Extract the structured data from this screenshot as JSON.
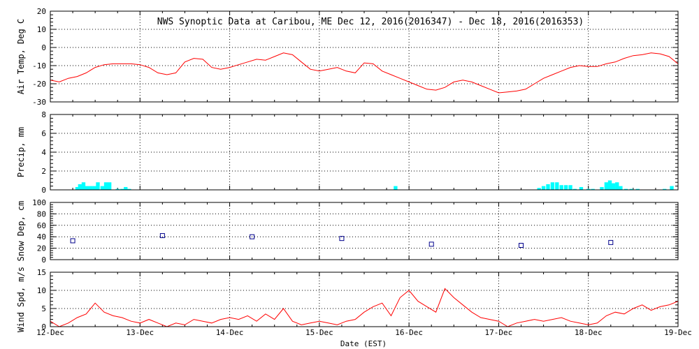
{
  "chart_data": {
    "type": "multi-panel time series",
    "title": "NWS Synoptic Data at Caribou, ME   Dec 12, 2016(2016347) - Dec 18, 2016(2016353)",
    "xlabel": "Date (EST)",
    "x_range_days": [
      0,
      7
    ],
    "x_ticks": [
      "12-Dec",
      "13-Dec",
      "14-Dec",
      "15-Dec",
      "16-Dec",
      "17-Dec",
      "18-Dec",
      "19-Dec"
    ],
    "colors": {
      "temp": "#ff0000",
      "precip": "#00ffff",
      "snow": "#00008b",
      "wind": "#ff0000"
    },
    "panels": [
      {
        "id": "airtemp",
        "type": "line",
        "ylabel": "Air Temp, Deg C",
        "ylim": [
          -30,
          20
        ],
        "yticks": [
          20,
          10,
          0,
          -10,
          -20,
          -30
        ],
        "x": [
          0,
          0.1,
          0.2,
          0.3,
          0.4,
          0.5,
          0.6,
          0.7,
          0.8,
          0.9,
          1.0,
          1.1,
          1.2,
          1.3,
          1.4,
          1.5,
          1.6,
          1.7,
          1.8,
          1.9,
          2.0,
          2.1,
          2.2,
          2.3,
          2.4,
          2.5,
          2.6,
          2.7,
          2.8,
          2.9,
          3.0,
          3.1,
          3.2,
          3.3,
          3.4,
          3.5,
          3.6,
          3.7,
          3.8,
          3.9,
          4.0,
          4.1,
          4.2,
          4.3,
          4.4,
          4.5,
          4.6,
          4.7,
          4.8,
          4.9,
          5.0,
          5.1,
          5.2,
          5.3,
          5.4,
          5.5,
          5.6,
          5.7,
          5.8,
          5.9,
          6.0,
          6.1,
          6.2,
          6.3,
          6.4,
          6.5,
          6.6,
          6.7,
          6.8,
          6.9,
          7.0
        ],
        "y": [
          -18,
          -19,
          -17,
          -16,
          -14,
          -11,
          -9.5,
          -9,
          -9,
          -9,
          -9.5,
          -11,
          -14,
          -15,
          -14,
          -8,
          -6,
          -6.5,
          -11,
          -12,
          -11,
          -9.5,
          -8,
          -6.5,
          -7,
          -5,
          -3,
          -4,
          -8,
          -12,
          -13,
          -12,
          -11,
          -13,
          -14,
          -8.5,
          -9,
          -13,
          -15,
          -17,
          -19,
          -21,
          -23,
          -23.5,
          -22,
          -19,
          -18,
          -19,
          -21,
          -23,
          -25,
          -24.5,
          -24,
          -23,
          -20,
          -17,
          -15,
          -13,
          -11,
          -10,
          -10.5,
          -10.5,
          -9,
          -8,
          -6,
          -4.5,
          -4,
          -3,
          -3.5,
          -5,
          -9
        ]
      },
      {
        "id": "precip",
        "type": "bar",
        "ylabel": "Precip, mm",
        "ylim": [
          0,
          8
        ],
        "yticks": [
          8,
          6,
          4,
          2,
          0
        ],
        "x": [
          0.3,
          0.33,
          0.37,
          0.41,
          0.45,
          0.49,
          0.53,
          0.58,
          0.62,
          0.66,
          0.75,
          0.8,
          0.84,
          0.88,
          3.85,
          5.45,
          5.5,
          5.55,
          5.6,
          5.65,
          5.7,
          5.75,
          5.8,
          5.85,
          5.92,
          6.0,
          6.05,
          6.15,
          6.2,
          6.24,
          6.28,
          6.32,
          6.36,
          6.42,
          6.48,
          6.55,
          6.85,
          6.93
        ],
        "values": [
          0.3,
          0.6,
          0.8,
          0.4,
          0.4,
          0.4,
          0.8,
          0.4,
          0.8,
          0.8,
          0.1,
          0.1,
          0.3,
          0.1,
          0.4,
          0.2,
          0.4,
          0.6,
          0.8,
          0.8,
          0.5,
          0.5,
          0.5,
          0.1,
          0.3,
          0.1,
          0.1,
          0.3,
          0.8,
          1.0,
          0.7,
          0.8,
          0.4,
          0.1,
          0.1,
          0.1,
          0.1,
          0.4
        ]
      },
      {
        "id": "snow",
        "type": "scatter",
        "ylabel": "Snow Dep, cm",
        "ylim": [
          0,
          100
        ],
        "yticks": [
          100,
          80,
          60,
          40,
          20,
          0
        ],
        "x": [
          0.25,
          1.25,
          2.25,
          3.25,
          4.25,
          5.25,
          6.25
        ],
        "values": [
          33,
          42,
          40,
          37,
          27,
          25,
          30
        ]
      },
      {
        "id": "wind",
        "type": "line",
        "ylabel": "Wind Spd, m/s",
        "ylim": [
          0,
          15
        ],
        "yticks": [
          15,
          10,
          5,
          0
        ],
        "x": [
          0,
          0.1,
          0.2,
          0.3,
          0.4,
          0.5,
          0.6,
          0.7,
          0.8,
          0.9,
          1.0,
          1.1,
          1.2,
          1.3,
          1.4,
          1.5,
          1.6,
          1.7,
          1.8,
          1.9,
          2.0,
          2.1,
          2.2,
          2.3,
          2.4,
          2.5,
          2.6,
          2.7,
          2.8,
          2.9,
          3.0,
          3.1,
          3.2,
          3.3,
          3.4,
          3.5,
          3.6,
          3.7,
          3.8,
          3.9,
          4.0,
          4.1,
          4.2,
          4.3,
          4.4,
          4.5,
          4.6,
          4.7,
          4.8,
          4.9,
          5.0,
          5.1,
          5.2,
          5.3,
          5.4,
          5.5,
          5.6,
          5.7,
          5.8,
          5.9,
          6.0,
          6.1,
          6.2,
          6.3,
          6.4,
          6.5,
          6.6,
          6.7,
          6.8,
          6.9,
          7.0
        ],
        "y": [
          1.5,
          0,
          1,
          2.5,
          3.5,
          6.5,
          4,
          3,
          2.5,
          1.5,
          1,
          2,
          1,
          0,
          1,
          0.5,
          2,
          1.5,
          1,
          2,
          2.5,
          2,
          3,
          1.5,
          3.5,
          2,
          5,
          1.5,
          0.5,
          1,
          1.5,
          1,
          0.5,
          1.5,
          2,
          4,
          5.5,
          6.5,
          3,
          8,
          10,
          7,
          5.5,
          4,
          10.5,
          8,
          6,
          4,
          2.5,
          2,
          1.5,
          0,
          1,
          1.5,
          2,
          1.5,
          2,
          2.5,
          1.5,
          1,
          0.5,
          1,
          3,
          4,
          3.5,
          5,
          6,
          4.5,
          5.5,
          6,
          7
        ]
      }
    ]
  }
}
